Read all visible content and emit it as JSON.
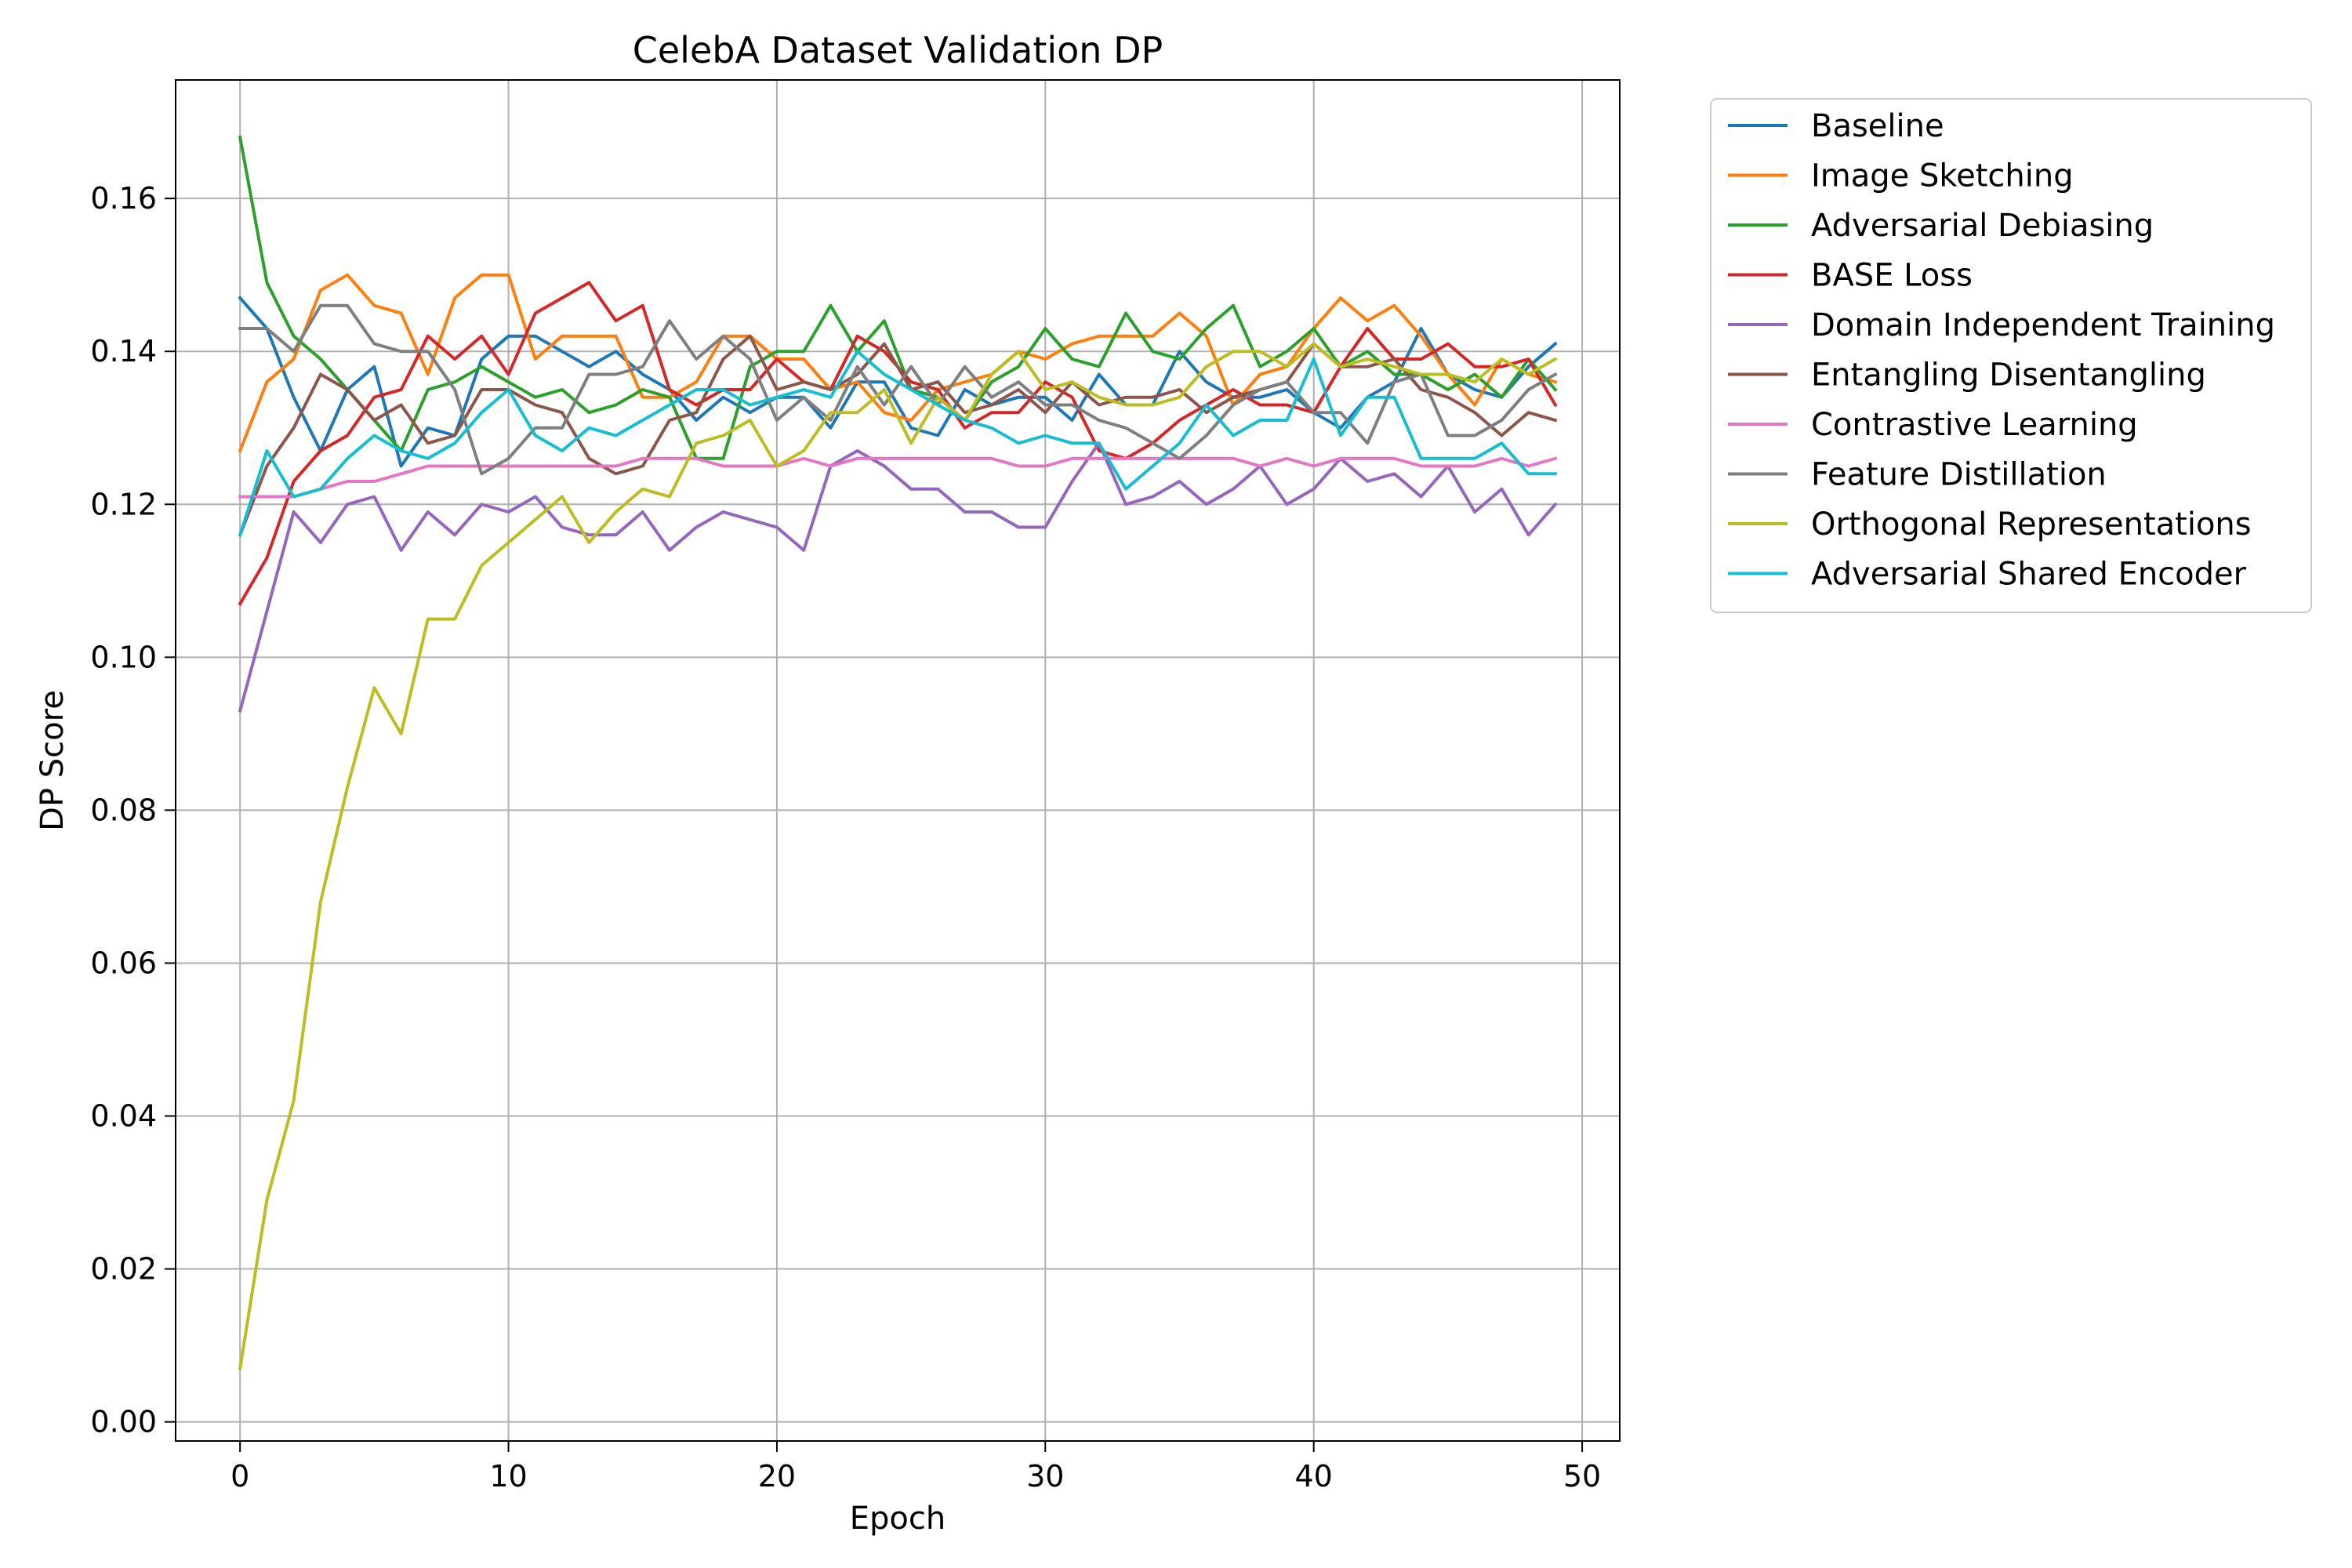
{
  "chart_data": {
    "type": "line",
    "title": "CelebA Dataset Validation DP",
    "xlabel": "Epoch",
    "ylabel": "DP Score",
    "xlim": [
      -2.4,
      51.4
    ],
    "ylim": [
      -0.0025,
      0.1755
    ],
    "xticks": [
      0,
      10,
      20,
      30,
      40,
      50
    ],
    "xtick_labels": [
      "0",
      "10",
      "20",
      "30",
      "40",
      "50"
    ],
    "yticks": [
      0.0,
      0.02,
      0.04,
      0.06,
      0.08,
      0.1,
      0.12,
      0.14,
      0.16
    ],
    "ytick_labels": [
      "0.00",
      "0.02",
      "0.04",
      "0.06",
      "0.08",
      "0.10",
      "0.12",
      "0.14",
      "0.16"
    ],
    "grid": true,
    "legend_position": "outside-top-right",
    "x": [
      0,
      1,
      2,
      3,
      4,
      5,
      6,
      7,
      8,
      9,
      10,
      11,
      12,
      13,
      14,
      15,
      16,
      17,
      18,
      19,
      20,
      21,
      22,
      23,
      24,
      25,
      26,
      27,
      28,
      29,
      30,
      31,
      32,
      33,
      34,
      35,
      36,
      37,
      38,
      39,
      40,
      41,
      42,
      43,
      44,
      45,
      46,
      47,
      48,
      49
    ],
    "series": [
      {
        "name": "Baseline",
        "color": "#1f77b4",
        "values": [
          0.147,
          0.143,
          0.134,
          0.127,
          0.135,
          0.138,
          0.125,
          0.13,
          0.129,
          0.139,
          0.142,
          0.142,
          0.14,
          0.138,
          0.14,
          0.137,
          0.135,
          0.131,
          0.134,
          0.132,
          0.134,
          0.134,
          0.13,
          0.136,
          0.136,
          0.13,
          0.129,
          0.135,
          0.133,
          0.134,
          0.134,
          0.131,
          0.137,
          0.133,
          0.133,
          0.14,
          0.136,
          0.134,
          0.134,
          0.135,
          0.132,
          0.13,
          0.134,
          0.136,
          0.143,
          0.137,
          0.135,
          0.134,
          0.138,
          0.141
        ]
      },
      {
        "name": "Image Sketching",
        "color": "#ff7f0e",
        "values": [
          0.127,
          0.136,
          0.139,
          0.148,
          0.15,
          0.146,
          0.145,
          0.137,
          0.147,
          0.15,
          0.15,
          0.139,
          0.142,
          0.142,
          0.142,
          0.134,
          0.134,
          0.136,
          0.142,
          0.142,
          0.139,
          0.139,
          0.135,
          0.136,
          0.132,
          0.131,
          0.135,
          0.136,
          0.137,
          0.14,
          0.139,
          0.141,
          0.142,
          0.142,
          0.142,
          0.145,
          0.142,
          0.133,
          0.137,
          0.138,
          0.143,
          0.147,
          0.144,
          0.146,
          0.142,
          0.137,
          0.133,
          0.139,
          0.137,
          0.136
        ]
      },
      {
        "name": "Adversarial Debiasing",
        "color": "#2ca02c",
        "values": [
          0.168,
          0.149,
          0.142,
          0.139,
          0.135,
          0.131,
          0.127,
          0.135,
          0.136,
          0.138,
          0.136,
          0.134,
          0.135,
          0.132,
          0.133,
          0.135,
          0.134,
          0.126,
          0.126,
          0.138,
          0.14,
          0.14,
          0.146,
          0.14,
          0.144,
          0.135,
          0.134,
          0.131,
          0.136,
          0.138,
          0.143,
          0.139,
          0.138,
          0.145,
          0.14,
          0.139,
          0.143,
          0.146,
          0.138,
          0.14,
          0.143,
          0.138,
          0.14,
          0.137,
          0.137,
          0.135,
          0.137,
          0.134,
          0.139,
          0.135
        ]
      },
      {
        "name": "BASE Loss",
        "color": "#d62728",
        "values": [
          0.107,
          0.113,
          0.123,
          0.127,
          0.129,
          0.134,
          0.135,
          0.142,
          0.139,
          0.142,
          0.137,
          0.145,
          0.147,
          0.149,
          0.144,
          0.146,
          0.135,
          0.133,
          0.135,
          0.135,
          0.139,
          0.136,
          0.135,
          0.142,
          0.14,
          0.136,
          0.135,
          0.13,
          0.132,
          0.132,
          0.136,
          0.134,
          0.127,
          0.126,
          0.128,
          0.131,
          0.133,
          0.135,
          0.133,
          0.133,
          0.132,
          0.138,
          0.143,
          0.139,
          0.139,
          0.141,
          0.138,
          0.138,
          0.139,
          0.133
        ]
      },
      {
        "name": "Domain Independent Training",
        "color": "#9467bd",
        "values": [
          0.093,
          0.106,
          0.119,
          0.115,
          0.12,
          0.121,
          0.114,
          0.119,
          0.116,
          0.12,
          0.119,
          0.121,
          0.117,
          0.116,
          0.116,
          0.119,
          0.114,
          0.117,
          0.119,
          0.118,
          0.117,
          0.114,
          0.125,
          0.127,
          0.125,
          0.122,
          0.122,
          0.119,
          0.119,
          0.117,
          0.117,
          0.123,
          0.128,
          0.12,
          0.121,
          0.123,
          0.12,
          0.122,
          0.125,
          0.12,
          0.122,
          0.126,
          0.123,
          0.124,
          0.121,
          0.125,
          0.119,
          0.122,
          0.116,
          0.12
        ]
      },
      {
        "name": "Entangling Disentangling",
        "color": "#8c564b",
        "values": [
          0.116,
          0.125,
          0.13,
          0.137,
          0.135,
          0.131,
          0.133,
          0.128,
          0.129,
          0.135,
          0.135,
          0.133,
          0.132,
          0.126,
          0.124,
          0.125,
          0.131,
          0.132,
          0.139,
          0.142,
          0.135,
          0.136,
          0.135,
          0.137,
          0.141,
          0.135,
          0.136,
          0.132,
          0.133,
          0.135,
          0.132,
          0.136,
          0.133,
          0.134,
          0.134,
          0.135,
          0.132,
          0.134,
          0.135,
          0.136,
          0.141,
          0.138,
          0.138,
          0.139,
          0.135,
          0.134,
          0.132,
          0.129,
          0.132,
          0.131
        ]
      },
      {
        "name": "Contrastive Learning",
        "color": "#e377c2",
        "values": [
          0.121,
          0.121,
          0.121,
          0.122,
          0.123,
          0.123,
          0.124,
          0.125,
          0.125,
          0.125,
          0.125,
          0.125,
          0.125,
          0.125,
          0.125,
          0.126,
          0.126,
          0.126,
          0.125,
          0.125,
          0.125,
          0.126,
          0.125,
          0.126,
          0.126,
          0.126,
          0.126,
          0.126,
          0.126,
          0.125,
          0.125,
          0.126,
          0.126,
          0.126,
          0.126,
          0.126,
          0.126,
          0.126,
          0.125,
          0.126,
          0.125,
          0.126,
          0.126,
          0.126,
          0.125,
          0.125,
          0.125,
          0.126,
          0.125,
          0.126
        ]
      },
      {
        "name": "Feature Distillation",
        "color": "#7f7f7f",
        "values": [
          0.143,
          0.143,
          0.14,
          0.146,
          0.146,
          0.141,
          0.14,
          0.14,
          0.135,
          0.124,
          0.126,
          0.13,
          0.13,
          0.137,
          0.137,
          0.138,
          0.144,
          0.139,
          0.142,
          0.139,
          0.131,
          0.134,
          0.131,
          0.138,
          0.133,
          0.138,
          0.133,
          0.138,
          0.134,
          0.136,
          0.133,
          0.133,
          0.131,
          0.13,
          0.128,
          0.126,
          0.129,
          0.133,
          0.135,
          0.136,
          0.132,
          0.132,
          0.128,
          0.136,
          0.137,
          0.129,
          0.129,
          0.131,
          0.135,
          0.137
        ]
      },
      {
        "name": "Orthogonal Representations",
        "color": "#bcbd22",
        "values": [
          0.007,
          0.029,
          0.042,
          0.068,
          0.083,
          0.096,
          0.09,
          0.105,
          0.105,
          0.112,
          0.115,
          0.118,
          0.121,
          0.115,
          0.119,
          0.122,
          0.121,
          0.128,
          0.129,
          0.131,
          0.125,
          0.127,
          0.132,
          0.132,
          0.135,
          0.128,
          0.134,
          0.131,
          0.137,
          0.14,
          0.135,
          0.136,
          0.134,
          0.133,
          0.133,
          0.134,
          0.138,
          0.14,
          0.14,
          0.138,
          0.141,
          0.138,
          0.139,
          0.138,
          0.137,
          0.137,
          0.136,
          0.139,
          0.137,
          0.139
        ]
      },
      {
        "name": "Adversarial Shared Encoder",
        "color": "#17becf",
        "values": [
          0.116,
          0.127,
          0.121,
          0.122,
          0.126,
          0.129,
          0.127,
          0.126,
          0.128,
          0.132,
          0.135,
          0.129,
          0.127,
          0.13,
          0.129,
          0.131,
          0.133,
          0.135,
          0.135,
          0.133,
          0.134,
          0.135,
          0.134,
          0.14,
          0.137,
          0.135,
          0.133,
          0.131,
          0.13,
          0.128,
          0.129,
          0.128,
          0.128,
          0.122,
          0.125,
          0.128,
          0.133,
          0.129,
          0.131,
          0.131,
          0.139,
          0.129,
          0.134,
          0.134,
          0.126,
          0.126,
          0.126,
          0.128,
          0.124,
          0.124
        ]
      }
    ]
  }
}
